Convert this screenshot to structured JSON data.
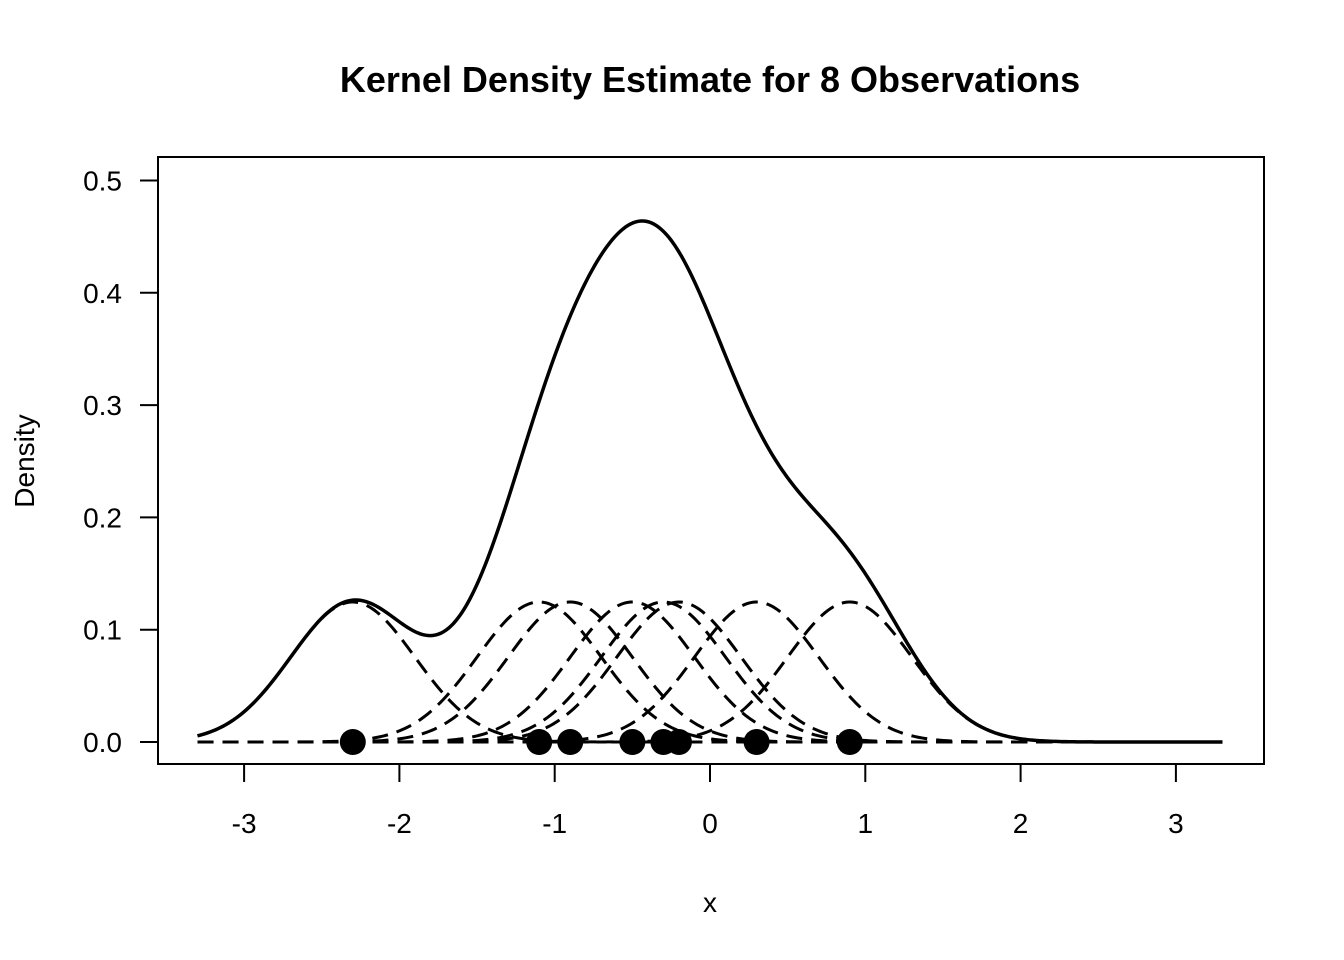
{
  "chart_data": {
    "type": "line",
    "title": "Kernel Density Estimate for 8 Observations",
    "xlabel": "x",
    "ylabel": "Density",
    "xlim": [
      -3.3,
      3.3
    ],
    "ylim": [
      0,
      0.5
    ],
    "x_ticks": [
      -3,
      -2,
      -1,
      0,
      1,
      2,
      3
    ],
    "x_tick_labels": [
      "-3",
      "-2",
      "-1",
      "0",
      "1",
      "2",
      "3"
    ],
    "y_ticks": [
      0.0,
      0.1,
      0.2,
      0.3,
      0.4,
      0.5
    ],
    "y_tick_labels": [
      "0.0",
      "0.1",
      "0.2",
      "0.3",
      "0.4",
      "0.5"
    ],
    "observations": [
      -2.3,
      -1.1,
      -0.9,
      -0.5,
      -0.3,
      -0.2,
      0.3,
      0.9
    ],
    "bandwidth": 0.4,
    "series": [
      {
        "name": "",
        "style": "solid",
        "description": "kernel density estimate (sum of kernels)"
      },
      {
        "name": "",
        "style": "dashed",
        "description": "individual Gaussian kernels, one per observation"
      },
      {
        "name": "",
        "style": "points",
        "description": "observations at y = 0"
      }
    ],
    "grid": false,
    "legend": "none"
  }
}
